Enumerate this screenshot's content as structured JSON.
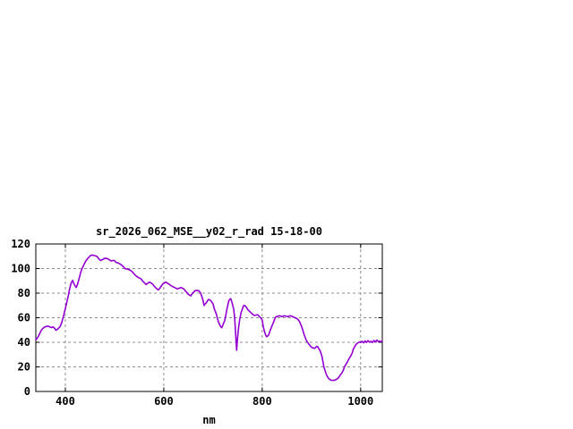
{
  "page": {
    "background": "#ffffff"
  },
  "chart_data": {
    "type": "line",
    "title": "sr_2026_062_MSE__y02_r_rad 15-18-00",
    "xlabel": "nm",
    "ylabel": "",
    "xlim": [
      340,
      1044
    ],
    "ylim": [
      0,
      120
    ],
    "grid": true,
    "legend": "none",
    "frame_color": "#000000",
    "grid_color": "#8c8c8c",
    "text_color": "#000000",
    "x_ticks": [
      {
        "value": 400,
        "label": "400"
      },
      {
        "value": 600,
        "label": "600"
      },
      {
        "value": 800,
        "label": "800"
      },
      {
        "value": 1000,
        "label": "1000"
      }
    ],
    "y_ticks": [
      {
        "value": 0,
        "label": "0"
      },
      {
        "value": 20,
        "label": "20"
      },
      {
        "value": 40,
        "label": "40"
      },
      {
        "value": 60,
        "label": "60"
      },
      {
        "value": 80,
        "label": "80"
      },
      {
        "value": 100,
        "label": "100"
      },
      {
        "value": 120,
        "label": "120"
      }
    ],
    "series": [
      {
        "name": "sr_2026_062_MSE__y02_r_rad",
        "color": "#9400D3",
        "points": [
          [
            340,
            43
          ],
          [
            341,
            42.2
          ],
          [
            343,
            43.5
          ],
          [
            345,
            44.6
          ],
          [
            347,
            46.2
          ],
          [
            349,
            48
          ],
          [
            351,
            49.6
          ],
          [
            354,
            51.2
          ],
          [
            358,
            52.4
          ],
          [
            362,
            53
          ],
          [
            366,
            53
          ],
          [
            369,
            52.4
          ],
          [
            372,
            52
          ],
          [
            375,
            52.6
          ],
          [
            378,
            51.6
          ],
          [
            381,
            49.8
          ],
          [
            384,
            50.6
          ],
          [
            387,
            51.8
          ],
          [
            390,
            53.2
          ],
          [
            393,
            56.5
          ],
          [
            396,
            61
          ],
          [
            400,
            67.5
          ],
          [
            403,
            72.5
          ],
          [
            406,
            78
          ],
          [
            409,
            84
          ],
          [
            412,
            88.5
          ],
          [
            415,
            90.5
          ],
          [
            417,
            88
          ],
          [
            420,
            85.8
          ],
          [
            422,
            84.6
          ],
          [
            425,
            87.5
          ],
          [
            428,
            92
          ],
          [
            431,
            96.5
          ],
          [
            434,
            100
          ],
          [
            438,
            103.5
          ],
          [
            442,
            106.5
          ],
          [
            446,
            108.5
          ],
          [
            450,
            110.2
          ],
          [
            453,
            111
          ],
          [
            457,
            110.8
          ],
          [
            460,
            110.5
          ],
          [
            463,
            110.2
          ],
          [
            466,
            109
          ],
          [
            469,
            107.4
          ],
          [
            472,
            106.6
          ],
          [
            476,
            107.4
          ],
          [
            480,
            108.4
          ],
          [
            484,
            108.2
          ],
          [
            487,
            107.8
          ],
          [
            490,
            107
          ],
          [
            493,
            106.2
          ],
          [
            497,
            106.6
          ],
          [
            500,
            106.4
          ],
          [
            503,
            105
          ],
          [
            507,
            104.6
          ],
          [
            511,
            103.8
          ],
          [
            514,
            102.9
          ],
          [
            518,
            101.5
          ],
          [
            522,
            99.8
          ],
          [
            527,
            99.6
          ],
          [
            531,
            98.8
          ],
          [
            535,
            97.8
          ],
          [
            540,
            95.5
          ],
          [
            544,
            94
          ],
          [
            549,
            92.5
          ],
          [
            553,
            91.9
          ],
          [
            558,
            89.5
          ],
          [
            562,
            88
          ],
          [
            564,
            87
          ],
          [
            567,
            88
          ],
          [
            571,
            89
          ],
          [
            574,
            88.2
          ],
          [
            577,
            87.5
          ],
          [
            580,
            86
          ],
          [
            583,
            84.6
          ],
          [
            586,
            83.5
          ],
          [
            589,
            82.7
          ],
          [
            592,
            84
          ],
          [
            595,
            85.8
          ],
          [
            598,
            87.5
          ],
          [
            601,
            88.2
          ],
          [
            604,
            89
          ],
          [
            607,
            88.2
          ],
          [
            610,
            87.5
          ],
          [
            613,
            86.6
          ],
          [
            616,
            85.8
          ],
          [
            619,
            85.2
          ],
          [
            622,
            84.6
          ],
          [
            625,
            84
          ],
          [
            628,
            83.4
          ],
          [
            631,
            84
          ],
          [
            635,
            84.6
          ],
          [
            638,
            84
          ],
          [
            641,
            83.4
          ],
          [
            643,
            82.2
          ],
          [
            646,
            81
          ],
          [
            649,
            79.3
          ],
          [
            652,
            78.5
          ],
          [
            655,
            77.8
          ],
          [
            658,
            79.8
          ],
          [
            661,
            81
          ],
          [
            664,
            82.2
          ],
          [
            668,
            82.1
          ],
          [
            671,
            82
          ],
          [
            673,
            81
          ],
          [
            675,
            79.8
          ],
          [
            678,
            76.5
          ],
          [
            680,
            73.7
          ],
          [
            682,
            70
          ],
          [
            684,
            71.2
          ],
          [
            687,
            72.5
          ],
          [
            689,
            74
          ],
          [
            691,
            74.9
          ],
          [
            694,
            74.3
          ],
          [
            696,
            73.7
          ],
          [
            698,
            72.5
          ],
          [
            700,
            71.3
          ],
          [
            703,
            67
          ],
          [
            707,
            62.8
          ],
          [
            709,
            59.5
          ],
          [
            711,
            56.7
          ],
          [
            714,
            54
          ],
          [
            716,
            52.5
          ],
          [
            718,
            51.9
          ],
          [
            721,
            55
          ],
          [
            724,
            58
          ],
          [
            726,
            62
          ],
          [
            728,
            66.4
          ],
          [
            730,
            70
          ],
          [
            732,
            73.7
          ],
          [
            734,
            74.8
          ],
          [
            736,
            75.6
          ],
          [
            739,
            72
          ],
          [
            742,
            67
          ],
          [
            744,
            60
          ],
          [
            746,
            47
          ],
          [
            748,
            33.5
          ],
          [
            750,
            44
          ],
          [
            752,
            52
          ],
          [
            754,
            58
          ],
          [
            757,
            64
          ],
          [
            760,
            67.5
          ],
          [
            762,
            69.8
          ],
          [
            764,
            70
          ],
          [
            767,
            69
          ],
          [
            771,
            66.5
          ],
          [
            776,
            64.5
          ],
          [
            780,
            63
          ],
          [
            784,
            61.8
          ],
          [
            788,
            62.2
          ],
          [
            791,
            62.5
          ],
          [
            794,
            61
          ],
          [
            798,
            59.5
          ],
          [
            800,
            58
          ],
          [
            802,
            53
          ],
          [
            804,
            49.5
          ],
          [
            807,
            46
          ],
          [
            809,
            44.6
          ],
          [
            811,
            45
          ],
          [
            813,
            45.8
          ],
          [
            816,
            49.5
          ],
          [
            819,
            52.5
          ],
          [
            822,
            55.5
          ],
          [
            825,
            58.5
          ],
          [
            827,
            60.4
          ],
          [
            831,
            61.2
          ],
          [
            835,
            61.6
          ],
          [
            838,
            61.2
          ],
          [
            840,
            60.9
          ],
          [
            843,
            61.3
          ],
          [
            845,
            61.6
          ],
          [
            849,
            61.2
          ],
          [
            853,
            60.9
          ],
          [
            855,
            61.4
          ],
          [
            858,
            61.6
          ],
          [
            861,
            61
          ],
          [
            864,
            60.4
          ],
          [
            868,
            59.8
          ],
          [
            871,
            59.2
          ],
          [
            874,
            58
          ],
          [
            876,
            56.7
          ],
          [
            879,
            54
          ],
          [
            882,
            50.7
          ],
          [
            885,
            46.5
          ],
          [
            889,
            42.2
          ],
          [
            892,
            40
          ],
          [
            895,
            38.5
          ],
          [
            898,
            37
          ],
          [
            900,
            36
          ],
          [
            903,
            35.4
          ],
          [
            907,
            35.1
          ],
          [
            909,
            36
          ],
          [
            911,
            36.7
          ],
          [
            913,
            36.2
          ],
          [
            915,
            34.8
          ],
          [
            918,
            32.9
          ],
          [
            920,
            30.5
          ],
          [
            922,
            27.6
          ],
          [
            925,
            20.4
          ],
          [
            928,
            16.7
          ],
          [
            931,
            13.1
          ],
          [
            934,
            11.2
          ],
          [
            936,
            10.2
          ],
          [
            940,
            9.2
          ],
          [
            944,
            9
          ],
          [
            947,
            9.2
          ],
          [
            949,
            9.5
          ],
          [
            952,
            10.2
          ],
          [
            955,
            11.1
          ],
          [
            958,
            13
          ],
          [
            962,
            15.1
          ],
          [
            965,
            17.5
          ],
          [
            967,
            19.9
          ],
          [
            970,
            22
          ],
          [
            973,
            24
          ],
          [
            976,
            26.4
          ],
          [
            980,
            28.9
          ],
          [
            983,
            31.5
          ],
          [
            985,
            34.4
          ],
          [
            988,
            36.5
          ],
          [
            991,
            38.5
          ],
          [
            994,
            39.5
          ],
          [
            998,
            40.2
          ],
          [
            1000,
            39.8
          ],
          [
            1003,
            40.8
          ],
          [
            1006,
            39.6
          ],
          [
            1009,
            41.2
          ],
          [
            1012,
            39.9
          ],
          [
            1015,
            41.4
          ],
          [
            1018,
            40.1
          ],
          [
            1021,
            40.8
          ],
          [
            1024,
            39.8
          ],
          [
            1027,
            41.5
          ],
          [
            1030,
            40.3
          ],
          [
            1033,
            41.8
          ],
          [
            1036,
            40.6
          ],
          [
            1039,
            41
          ],
          [
            1042,
            40.4
          ],
          [
            1044,
            41.2
          ]
        ]
      }
    ]
  }
}
